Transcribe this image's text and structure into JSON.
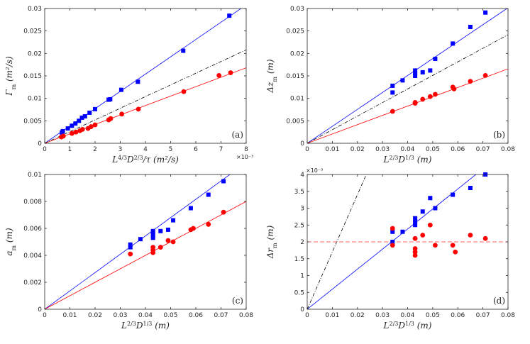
{
  "colors": {
    "blue": "#0000ff",
    "red": "#ff0000",
    "black": "#000000",
    "dashed_red": "#ff6666"
  },
  "chart_data": [
    {
      "type": "scatter",
      "tag": "(a)",
      "xlabel": "L^{4/3}D^{2/3}/τ (m²/s)",
      "ylabel": "Γ_m (m²/s)",
      "xlim": [
        0,
        0.008
      ],
      "ylim": [
        0,
        0.03
      ],
      "x_ticks": [
        0,
        0.001,
        0.002,
        0.003,
        0.004,
        0.005,
        0.006,
        0.007,
        0.008
      ],
      "x_tick_labels": [
        "0",
        "1",
        "2",
        "3",
        "4",
        "5",
        "6",
        "7",
        "8"
      ],
      "x_exponent": "×10⁻³",
      "y_ticks": [
        0,
        0.005,
        0.01,
        0.015,
        0.02,
        0.025,
        0.03
      ],
      "y_tick_labels": [
        "0",
        "0.005",
        "0.01",
        "0.015",
        "0.02",
        "0.025",
        "0.03"
      ],
      "series": [
        {
          "name": "blue-squares",
          "marker": "square",
          "color": "#0000ff",
          "x": [
            0.00068,
            0.00072,
            0.00092,
            0.00108,
            0.00122,
            0.00136,
            0.00148,
            0.0016,
            0.00178,
            0.002,
            0.00254,
            0.0026,
            0.00304,
            0.0037,
            0.0055,
            0.00733
          ],
          "y": [
            0.0024,
            0.0027,
            0.0033,
            0.0039,
            0.0044,
            0.005,
            0.0057,
            0.006,
            0.0068,
            0.0076,
            0.0097,
            0.0098,
            0.0119,
            0.0137,
            0.0206,
            0.0284
          ]
        },
        {
          "name": "red-circles",
          "marker": "circle",
          "color": "#ff0000",
          "x": [
            0.00066,
            0.00074,
            0.00108,
            0.00124,
            0.0014,
            0.0015,
            0.00172,
            0.00184,
            0.002,
            0.00254,
            0.00262,
            0.00306,
            0.00372,
            0.00552,
            0.00692,
            0.00738
          ],
          "y": [
            0.0014,
            0.0016,
            0.0022,
            0.0025,
            0.0028,
            0.0031,
            0.0033,
            0.0037,
            0.0041,
            0.0052,
            0.0055,
            0.0065,
            0.0076,
            0.0115,
            0.0151,
            0.0157
          ]
        }
      ],
      "fit_lines": [
        {
          "color": "#0000ff",
          "style": "solid",
          "slope": 3.85
        },
        {
          "color": "#000000",
          "style": "dashdot",
          "slope": 2.6
        },
        {
          "color": "#ff0000",
          "style": "solid",
          "slope": 2.1
        }
      ],
      "hlines": []
    },
    {
      "type": "scatter",
      "tag": "(b)",
      "xlabel": "L^{2/3}D^{1/3} (m)",
      "ylabel": "Δz_m (m)",
      "xlim": [
        0,
        0.08
      ],
      "ylim": [
        0,
        0.03
      ],
      "x_ticks": [
        0,
        0.01,
        0.02,
        0.03,
        0.04,
        0.05,
        0.06,
        0.07,
        0.08
      ],
      "x_tick_labels": [
        "0",
        "0.01",
        "0.02",
        "0.03",
        "0.04",
        "0.05",
        "0.06",
        "0.07",
        "0.08"
      ],
      "x_exponent": "",
      "y_ticks": [
        0,
        0.005,
        0.01,
        0.015,
        0.02,
        0.025,
        0.03
      ],
      "y_tick_labels": [
        "0",
        "0.005",
        "0.01",
        "0.015",
        "0.02",
        "0.025",
        "0.03"
      ],
      "series": [
        {
          "name": "blue-squares",
          "marker": "square",
          "color": "#0000ff",
          "x": [
            0.034,
            0.034,
            0.038,
            0.043,
            0.043,
            0.043,
            0.046,
            0.049,
            0.051,
            0.058,
            0.065,
            0.071
          ],
          "y": [
            0.0128,
            0.0113,
            0.014,
            0.015,
            0.0156,
            0.0162,
            0.0158,
            0.0162,
            0.0188,
            0.0222,
            0.0259,
            0.0291
          ]
        },
        {
          "name": "red-circles",
          "marker": "circle",
          "color": "#ff0000",
          "x": [
            0.034,
            0.043,
            0.043,
            0.046,
            0.049,
            0.051,
            0.058,
            0.0585,
            0.065,
            0.071
          ],
          "y": [
            0.0071,
            0.0089,
            0.0091,
            0.0098,
            0.0104,
            0.0109,
            0.0125,
            0.0121,
            0.0138,
            0.0151
          ]
        }
      ],
      "fit_lines": [
        {
          "color": "#0000ff",
          "style": "solid",
          "slope": 0.377
        },
        {
          "color": "#000000",
          "style": "dashdot",
          "slope": 0.302
        },
        {
          "color": "#ff0000",
          "style": "solid",
          "slope": 0.207
        }
      ],
      "hlines": []
    },
    {
      "type": "scatter",
      "tag": "(c)",
      "xlabel": "L^{2/3}D^{1/3} (m)",
      "ylabel": "a_m (m)",
      "xlim": [
        0,
        0.08
      ],
      "ylim": [
        0,
        0.01
      ],
      "x_ticks": [
        0,
        0.01,
        0.02,
        0.03,
        0.04,
        0.05,
        0.06,
        0.07,
        0.08
      ],
      "x_tick_labels": [
        "0",
        "0.01",
        "0.02",
        "0.03",
        "0.04",
        "0.05",
        "0.06",
        "0.07",
        "0.08"
      ],
      "x_exponent": "",
      "y_ticks": [
        0,
        0.002,
        0.004,
        0.006,
        0.008,
        0.01
      ],
      "y_tick_labels": [
        "0",
        "0.002",
        "0.004",
        "0.006",
        "0.008",
        "0.01"
      ],
      "series": [
        {
          "name": "blue-squares",
          "marker": "square",
          "color": "#0000ff",
          "x": [
            0.034,
            0.034,
            0.038,
            0.043,
            0.043,
            0.043,
            0.043,
            0.046,
            0.049,
            0.051,
            0.058,
            0.065,
            0.071
          ],
          "y": [
            0.0046,
            0.0048,
            0.0052,
            0.0053,
            0.0055,
            0.0057,
            0.0058,
            0.0058,
            0.0059,
            0.0066,
            0.0075,
            0.0085,
            0.0095
          ]
        },
        {
          "name": "red-circles",
          "marker": "circle",
          "color": "#ff0000",
          "x": [
            0.034,
            0.043,
            0.043,
            0.043,
            0.046,
            0.049,
            0.051,
            0.058,
            0.059,
            0.065,
            0.071
          ],
          "y": [
            0.0041,
            0.0042,
            0.0044,
            0.0046,
            0.0046,
            0.0051,
            0.005,
            0.0059,
            0.006,
            0.0063,
            0.0072
          ]
        }
      ],
      "fit_lines": [
        {
          "color": "#0000ff",
          "style": "solid",
          "slope": 0.136
        },
        {
          "color": "#ff0000",
          "style": "solid",
          "slope": 0.1
        }
      ],
      "hlines": []
    },
    {
      "type": "scatter",
      "tag": "(d)",
      "xlabel": "L^{2/3}D^{1/3} (m)",
      "ylabel": "Δr_m (m)",
      "xlim": [
        0,
        0.08
      ],
      "ylim": [
        0,
        0.004
      ],
      "x_ticks": [
        0,
        0.01,
        0.02,
        0.03,
        0.04,
        0.05,
        0.06,
        0.07,
        0.08
      ],
      "x_tick_labels": [
        "0",
        "0.01",
        "0.02",
        "0.03",
        "0.04",
        "0.05",
        "0.06",
        "0.07",
        "0.08"
      ],
      "x_exponent": "",
      "y_ticks": [
        0,
        0.0005,
        0.001,
        0.0015,
        0.002,
        0.0025,
        0.003,
        0.0035,
        0.004
      ],
      "y_tick_labels": [
        "0",
        "0.5",
        "1",
        "1.5",
        "2",
        "2.5",
        "3",
        "3.5",
        "4"
      ],
      "y_exponent": "×10⁻³",
      "series": [
        {
          "name": "blue-squares",
          "marker": "square",
          "color": "#0000ff",
          "x": [
            0.034,
            0.034,
            0.038,
            0.043,
            0.043,
            0.043,
            0.046,
            0.049,
            0.051,
            0.058,
            0.065,
            0.071
          ],
          "y": [
            0.002,
            0.0023,
            0.0023,
            0.0025,
            0.0026,
            0.0027,
            0.0029,
            0.0033,
            0.003,
            0.0034,
            0.0036,
            0.004
          ]
        },
        {
          "name": "red-circles",
          "marker": "circle",
          "color": "#ff0000",
          "x": [
            0.034,
            0.034,
            0.043,
            0.043,
            0.043,
            0.043,
            0.046,
            0.049,
            0.051,
            0.058,
            0.059,
            0.065,
            0.071
          ],
          "y": [
            0.0024,
            0.0019,
            0.0021,
            0.0018,
            0.0017,
            0.0016,
            0.0022,
            0.0025,
            0.0019,
            0.0019,
            0.0017,
            0.0022,
            0.0021
          ]
        }
      ],
      "fit_lines": [
        {
          "color": "#0000ff",
          "style": "solid",
          "slope": 0.0595
        },
        {
          "color": "#000000",
          "style": "dashdot",
          "slope": 0.17
        }
      ],
      "hlines": [
        {
          "color": "#ff6666",
          "style": "dashed",
          "y": 0.002
        }
      ]
    }
  ]
}
